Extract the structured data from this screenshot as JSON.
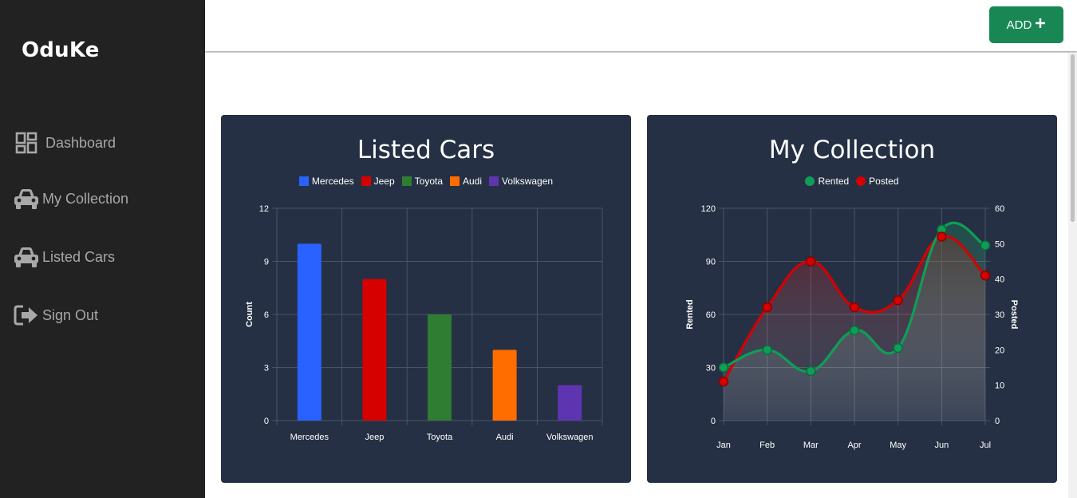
{
  "app": {
    "brand": "OduKe"
  },
  "sidebar": {
    "items": [
      {
        "label": "Dashboard",
        "icon": "dashboard-icon"
      },
      {
        "label": "My Collection",
        "icon": "car-icon"
      },
      {
        "label": "Listed Cars",
        "icon": "car-icon"
      },
      {
        "label": "Sign Out",
        "icon": "sign-out-icon"
      }
    ]
  },
  "header": {
    "add_label": "ADD",
    "add_icon": "plus-icon",
    "accent": "#198754"
  },
  "colors": {
    "sidebar_bg": "#222222",
    "card_bg": "#253044"
  },
  "charts": {
    "listed": {
      "title": "Listed Cars",
      "legend": [
        {
          "label": "Mercedes",
          "color": "#2962ff"
        },
        {
          "label": "Jeep",
          "color": "#d50000"
        },
        {
          "label": "Toyota",
          "color": "#2e7d32"
        },
        {
          "label": "Audi",
          "color": "#ff6d00"
        },
        {
          "label": "Volkswagen",
          "color": "#5e35b1"
        }
      ]
    },
    "collection": {
      "title": "My Collection",
      "legend": [
        {
          "label": "Rented",
          "color": "#0f9d58"
        },
        {
          "label": "Posted",
          "color": "#d50000"
        }
      ]
    }
  },
  "chart_data": [
    {
      "type": "bar",
      "title": "Listed Cars",
      "categories": [
        "Mercedes",
        "Jeep",
        "Toyota",
        "Audi",
        "Volkswagen"
      ],
      "values": [
        10,
        8,
        6,
        4,
        2
      ],
      "colors": [
        "#2962ff",
        "#d50000",
        "#2e7d32",
        "#ff6d00",
        "#5e35b1"
      ],
      "ylabel": "Count",
      "ylim": [
        0,
        12
      ],
      "yticks": [
        0,
        3,
        6,
        9,
        12
      ],
      "grid": true,
      "legend": "top"
    },
    {
      "type": "line",
      "title": "My Collection",
      "x": [
        "Jan",
        "Feb",
        "Mar",
        "Apr",
        "May",
        "Jun",
        "Jul"
      ],
      "series": [
        {
          "name": "Rented",
          "axis": "left",
          "color": "#0f9d58",
          "values": [
            30,
            40,
            28,
            51,
            41,
            108,
            99
          ]
        },
        {
          "name": "Posted",
          "axis": "right",
          "color": "#d50000",
          "values": [
            11,
            32,
            45,
            32,
            34,
            52,
            41
          ]
        }
      ],
      "ylabel": "Rented",
      "y2label": "Posted",
      "ylim": [
        0,
        120
      ],
      "y2lim": [
        0,
        60
      ],
      "yticks": [
        0,
        30,
        60,
        90,
        120
      ],
      "y2ticks": [
        0,
        10,
        20,
        30,
        40,
        50,
        60
      ],
      "grid": true,
      "legend": "top"
    }
  ]
}
